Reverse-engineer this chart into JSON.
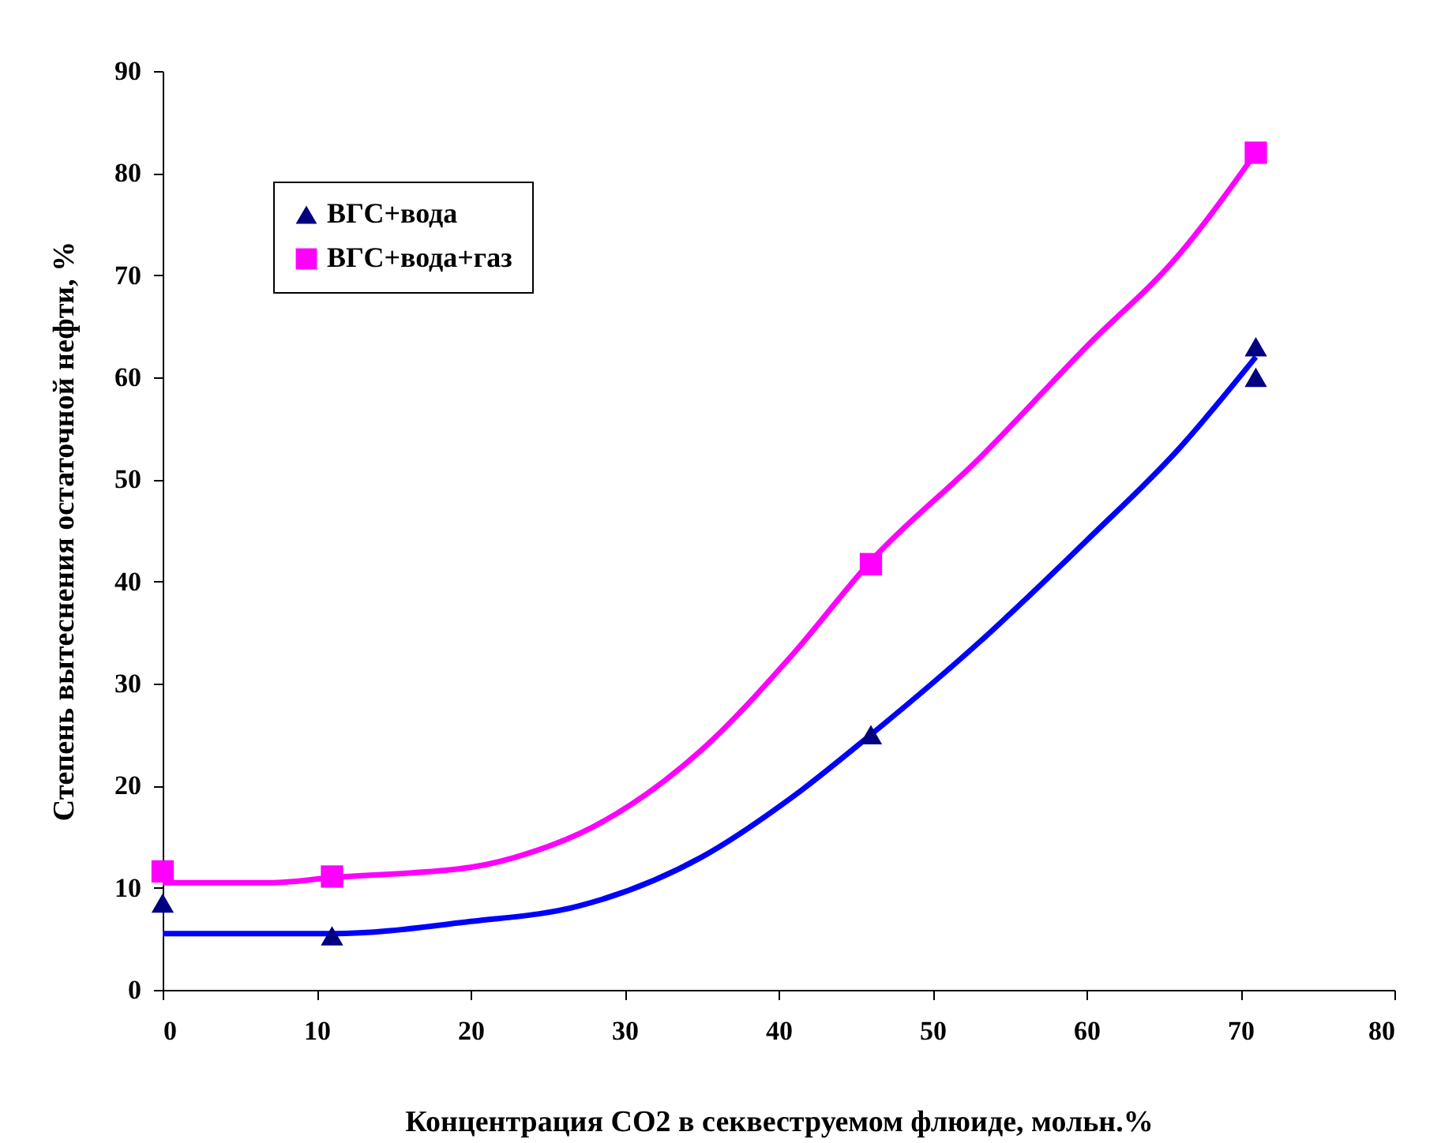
{
  "chart_data": {
    "type": "scatter",
    "xlabel": "Концентрация CO2 в  секвеструемом флюиде, мольн.%",
    "ylabel": "Степень вытеснения остаточной нефти, %",
    "xlim": [
      0,
      80
    ],
    "xticks": [
      0,
      10,
      20,
      30,
      40,
      50,
      60,
      70,
      80
    ],
    "ylim": [
      0,
      90
    ],
    "yticks": [
      0,
      10,
      20,
      30,
      40,
      50,
      60,
      70,
      80,
      90
    ],
    "grid": false,
    "legend": "top left",
    "series": [
      {
        "type": "line",
        "color": "#0000ff",
        "x": [
          0,
          11,
          20,
          27,
          35,
          41,
          46,
          53,
          60,
          66,
          71
        ],
        "values": [
          5.5,
          5.5,
          6.7,
          8.2,
          13,
          19,
          25,
          34,
          44,
          53,
          62
        ]
      },
      {
        "type": "line",
        "color": "#ff00ff",
        "x": [
          0,
          7,
          11,
          20,
          24,
          28,
          35,
          41,
          46,
          53,
          60,
          66,
          71
        ],
        "values": [
          10.5,
          10.5,
          11,
          12,
          13.5,
          16,
          23.5,
          33,
          42,
          52,
          63,
          72,
          82
        ]
      },
      {
        "name": "ВГС+вода",
        "marker": "triangle",
        "color": "#000080",
        "x": [
          0,
          11,
          46,
          71,
          71
        ],
        "values": [
          8.5,
          5.3,
          25,
          63,
          60
        ]
      },
      {
        "name": "ВГС+вода+газ",
        "marker": "square",
        "color": "#ff00ff",
        "x": [
          0,
          11,
          46,
          71
        ],
        "values": [
          11.6,
          11.1,
          41.7,
          82
        ]
      }
    ]
  }
}
